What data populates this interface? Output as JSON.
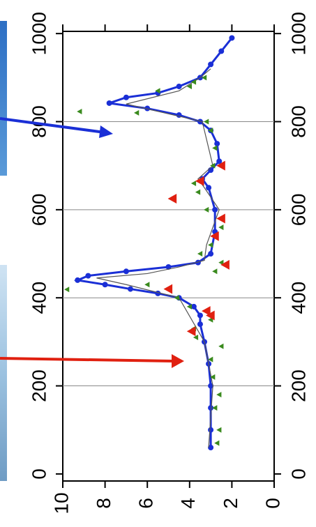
{
  "chart_data": {
    "type": "line",
    "xlim": [
      -16,
      1005
    ],
    "ylim": [
      0,
      10
    ],
    "xticks": [
      0,
      200,
      400,
      600,
      800,
      1000
    ],
    "yticks": [
      0,
      2,
      4,
      6,
      8,
      10
    ],
    "grid": "x",
    "rotation": -90,
    "series": [
      {
        "color": "#1a2fd6",
        "mode": "line+markers",
        "x": [
          60,
          100,
          150,
          200,
          250,
          300,
          340,
          360,
          380,
          400,
          410,
          420,
          430,
          440,
          450,
          460,
          470,
          480,
          500,
          550,
          600,
          650,
          670,
          690,
          710,
          750,
          780,
          800,
          815,
          830,
          842,
          855,
          865,
          880,
          900,
          930,
          960,
          990
        ],
        "values": [
          3.0,
          3.0,
          3.0,
          3.0,
          3.1,
          3.3,
          3.5,
          3.5,
          3.8,
          4.5,
          5.5,
          6.8,
          8.0,
          9.3,
          8.8,
          7.0,
          5.0,
          3.6,
          3.0,
          2.8,
          2.8,
          3.1,
          3.4,
          3.0,
          2.6,
          2.7,
          3.0,
          3.5,
          4.5,
          6.0,
          7.8,
          7.0,
          5.5,
          4.5,
          3.5,
          3.0,
          2.5,
          2.0
        ]
      },
      {
        "color": "#555555",
        "mode": "line",
        "x": [
          60,
          200,
          300,
          400,
          430,
          445,
          455,
          470,
          485,
          520,
          600,
          650,
          670,
          700,
          800,
          840,
          870,
          900,
          920
        ],
        "values": [
          3.1,
          2.9,
          3.3,
          4.5,
          7.0,
          8.4,
          6.0,
          4.5,
          3.3,
          3.2,
          2.6,
          3.3,
          3.6,
          2.9,
          3.4,
          7.0,
          4.5,
          3.5,
          3.0
        ]
      },
      {
        "color": "#3a8a1e",
        "mode": "markers",
        "x": [
          70,
          100,
          150,
          180,
          220,
          260,
          290,
          310,
          330,
          350,
          380,
          400,
          419,
          430,
          460,
          480,
          500,
          520,
          560,
          600,
          640,
          660,
          700,
          740,
          780,
          800,
          820,
          823,
          870,
          880,
          890,
          900
        ],
        "values": [
          2.7,
          2.6,
          2.8,
          2.6,
          2.9,
          3.0,
          2.5,
          3.7,
          3.8,
          3.0,
          4.0,
          4.6,
          9.8,
          6.0,
          2.8,
          2.5,
          3.5,
          3.0,
          2.5,
          3.2,
          3.6,
          3.8,
          2.9,
          2.8,
          3.0,
          3.2,
          6.5,
          9.2,
          5.5,
          4.0,
          3.8,
          3.3
        ]
      },
      {
        "color": "#e02010",
        "mode": "markers",
        "x": [
          324,
          370,
          360,
          420,
          475,
          540,
          580,
          625,
          665,
          700
        ],
        "values": [
          3.9,
          3.2,
          3.0,
          5.0,
          2.3,
          2.8,
          2.5,
          4.8,
          3.5,
          2.5
        ]
      }
    ]
  }
}
